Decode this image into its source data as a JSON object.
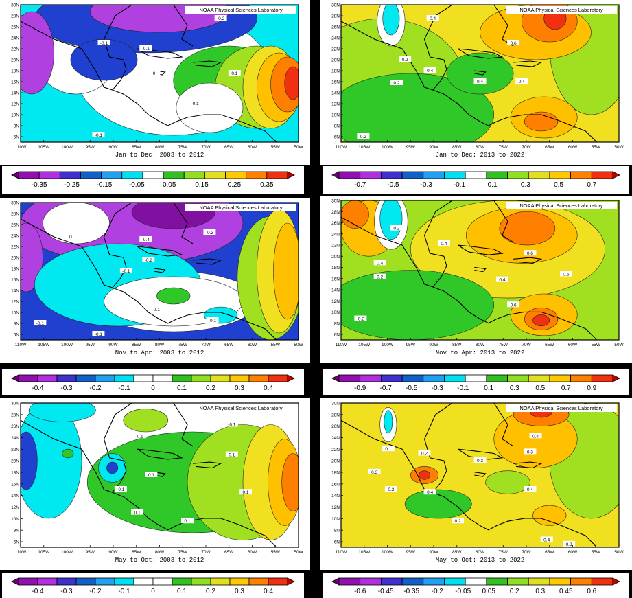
{
  "credit": "NOAA Physical Sciences Laboratory",
  "lat_ticks": [
    "6N",
    "8N",
    "10N",
    "12N",
    "14N",
    "16N",
    "18N",
    "20N",
    "22N",
    "24N",
    "26N",
    "28N",
    "30N"
  ],
  "lon_ticks": [
    "110W",
    "105W",
    "100W",
    "95W",
    "90W",
    "85W",
    "80W",
    "75W",
    "70W",
    "65W",
    "60W",
    "55W",
    "50W"
  ],
  "panels": [
    {
      "id": "p1",
      "caption": "Jan to Dec: 2003 to 2012",
      "labels": [
        "-0.2",
        "-0.1",
        "-0.1",
        "0",
        "0.1",
        "0.1",
        "-0.1"
      ],
      "colorbar": {
        "ticks": [
          "-0.35",
          "-0.25",
          "-0.15",
          "-0.05",
          "0.05",
          "0.15",
          "0.25",
          "0.35"
        ],
        "colors": [
          "#700070",
          "#9010b0",
          "#b030e0",
          "#4030d0",
          "#1060c8",
          "#20a0f0",
          "#00e0f0",
          "#ffffff",
          "#30c020",
          "#90e020",
          "#e0e020",
          "#ffc800",
          "#ff8000",
          "#f03010",
          "#c00000"
        ]
      }
    },
    {
      "id": "p2",
      "caption": "Jan to Dec: 2013 to 2022",
      "labels": [
        "0.4",
        "0.6",
        "0.2",
        "0.4",
        "0.4",
        "0.4",
        "0.2",
        "0.2"
      ],
      "colorbar": {
        "ticks": [
          "-0.7",
          "-0.5",
          "-0.3",
          "-0.1",
          "0.1",
          "0.3",
          "0.5",
          "0.7"
        ],
        "colors": [
          "#700070",
          "#9010b0",
          "#b030e0",
          "#4030d0",
          "#1060c8",
          "#20a0f0",
          "#00e0f0",
          "#ffffff",
          "#30c020",
          "#90e020",
          "#e0e020",
          "#ffc800",
          "#ff8000",
          "#f03010",
          "#c00000"
        ]
      }
    },
    {
      "id": "p3",
      "caption": "Nov to Apr: 2003 to 2012",
      "labels": [
        "-0.4",
        "-0.3",
        "-0.2",
        "-0.1",
        "0.1",
        "-0.1",
        "-0.1",
        "-0.1",
        "0"
      ],
      "colorbar": {
        "ticks": [
          "-0.4",
          "-0.3",
          "-0.2",
          "-0.1",
          "0",
          "0.1",
          "0.2",
          "0.3",
          "0.4"
        ],
        "colors": [
          "#700070",
          "#9010b0",
          "#b030e0",
          "#4030d0",
          "#1060c8",
          "#20a0f0",
          "#00e0f0",
          "#ffffff",
          "#ffffff",
          "#30c020",
          "#90e020",
          "#e0e020",
          "#ffc800",
          "#ff8000",
          "#f03010",
          "#c00000"
        ]
      }
    },
    {
      "id": "p4",
      "caption": "Nov to Apr: 2013 to 2022",
      "labels": [
        "-0.2",
        "0.4",
        "0.4",
        "0.6",
        "0.6",
        "0.4",
        "0.2",
        "0.2",
        "0.6"
      ],
      "colorbar": {
        "ticks": [
          "-0.9",
          "-0.7",
          "-0.5",
          "-0.3",
          "-0.1",
          "0.1",
          "0.3",
          "0.5",
          "0.7",
          "0.9"
        ],
        "colors": [
          "#700070",
          "#9010b0",
          "#b030e0",
          "#4030d0",
          "#1060c8",
          "#20a0f0",
          "#00e0f0",
          "#ffffff",
          "#30c020",
          "#90e020",
          "#e0e020",
          "#ffc800",
          "#ff8000",
          "#f03010",
          "#c00000"
        ]
      }
    },
    {
      "id": "p5",
      "caption": "May to Oct: 2003 to 2012",
      "labels": [
        "-0.1",
        "0.1",
        "0.1",
        "0.1",
        "0.1",
        "-0.1",
        "0.1",
        "0.1"
      ],
      "colorbar": {
        "ticks": [
          "-0.4",
          "-0.3",
          "-0.2",
          "-0.1",
          "0",
          "0.1",
          "0.2",
          "0.3",
          "0.4"
        ],
        "colors": [
          "#700070",
          "#9010b0",
          "#b030e0",
          "#4030d0",
          "#1060c8",
          "#20a0f0",
          "#00e0f0",
          "#ffffff",
          "#ffffff",
          "#30c020",
          "#90e020",
          "#e0e020",
          "#ffc800",
          "#ff8000",
          "#f03010",
          "#c00000"
        ]
      }
    },
    {
      "id": "p6",
      "caption": "May to Oct: 2013 to 2022",
      "labels": [
        "0.1",
        "0.3",
        "0.3",
        "0.4",
        "0.2",
        "0.2",
        "0.4",
        "0.4",
        "0.3",
        "0.4",
        "0.3",
        "0.2"
      ],
      "colorbar": {
        "ticks": [
          "-0.6",
          "-0.45",
          "-0.35",
          "-0.2",
          "-0.05",
          "0.05",
          "0.2",
          "0.3",
          "0.45",
          "0.6"
        ],
        "colors": [
          "#700070",
          "#9010b0",
          "#b030e0",
          "#4030d0",
          "#1060c8",
          "#20a0f0",
          "#00e0f0",
          "#ffffff",
          "#30c020",
          "#90e020",
          "#e0e020",
          "#ffc800",
          "#ff8000",
          "#f03010",
          "#c00000"
        ]
      }
    }
  ],
  "palette": {
    "purple": "#8010a0",
    "violet": "#b040e0",
    "blue": "#2040d0",
    "cyan": "#00e8f0",
    "white": "#ffffff",
    "green": "#30c828",
    "lime": "#a0e020",
    "yellow": "#f0e020",
    "gold": "#ffc000",
    "orange": "#ff8000",
    "red": "#f03010"
  }
}
